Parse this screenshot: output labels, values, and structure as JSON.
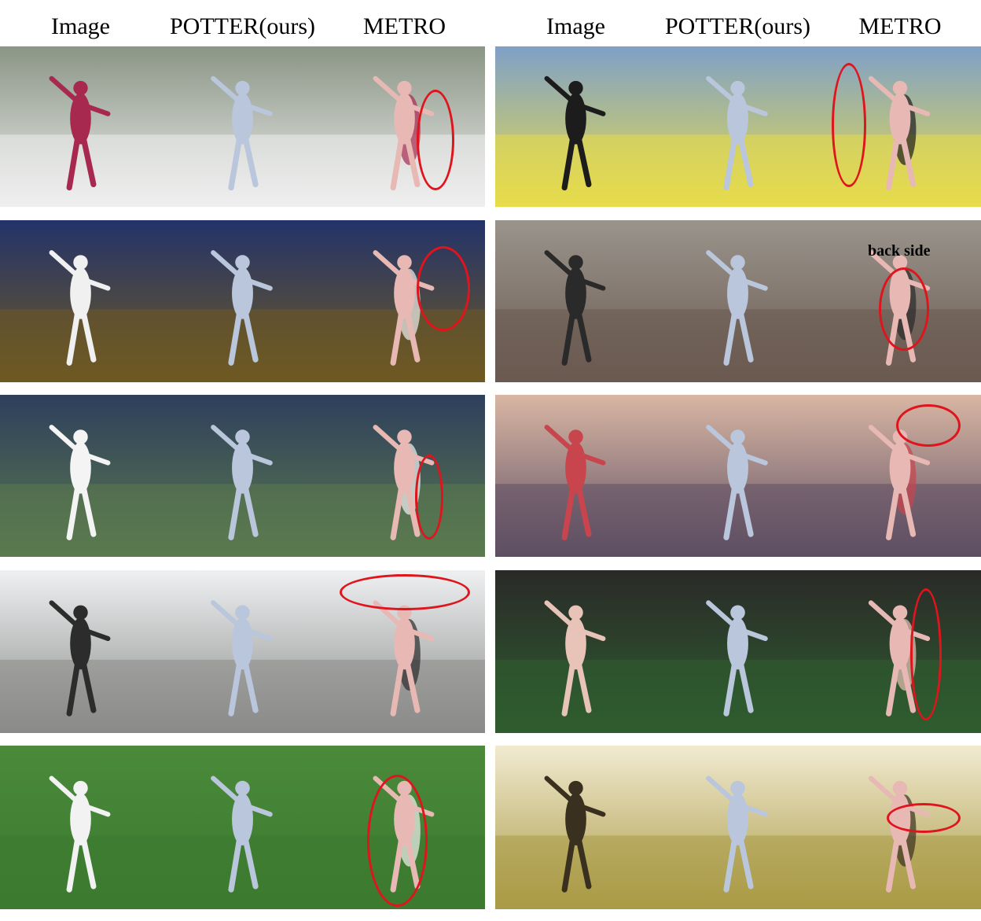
{
  "headers": {
    "left": [
      "Image",
      "POTTER(ours)",
      "METRO"
    ],
    "right": [
      "Image",
      "POTTER(ours)",
      "METRO"
    ]
  },
  "annotation": "back side",
  "highlight_color": "#e0141c",
  "panels": [
    {
      "name": "ski",
      "bg1": "#8a9585",
      "bg2": "#eeeeee",
      "fig": "#a8294f"
    },
    {
      "name": "skate-yellow",
      "bg1": "#7fa0c8",
      "bg2": "#e8dc4a",
      "fig": "#1c1c1c"
    },
    {
      "name": "tennis-clay",
      "bg1": "#23336a",
      "bg2": "#6f5a22",
      "fig": "#f0f0f0"
    },
    {
      "name": "beach-surf",
      "bg1": "#9a948c",
      "bg2": "#6a5a50",
      "fig": "#2a2a2a"
    },
    {
      "name": "tennis-green",
      "bg1": "#2e3f5c",
      "bg2": "#5b7a4e",
      "fig": "#f4f4f4"
    },
    {
      "name": "skate-sky",
      "bg1": "#d9b6a3",
      "bg2": "#5e4f63",
      "fig": "#c8454e"
    },
    {
      "name": "skate-snow",
      "bg1": "#eef0f2",
      "bg2": "#8a8a88",
      "fig": "#2c2c2c"
    },
    {
      "name": "tennis-night",
      "bg1": "#2a2a28",
      "bg2": "#2f5d2f",
      "fig": "#e8c4b8"
    },
    {
      "name": "grass-court",
      "bg1": "#4a8a3a",
      "bg2": "#3c7a30",
      "fig": "#f2f2f2"
    },
    {
      "name": "sand-dancer",
      "bg1": "#f1ead0",
      "bg2": "#a99a45",
      "fig": "#3a3020"
    }
  ]
}
